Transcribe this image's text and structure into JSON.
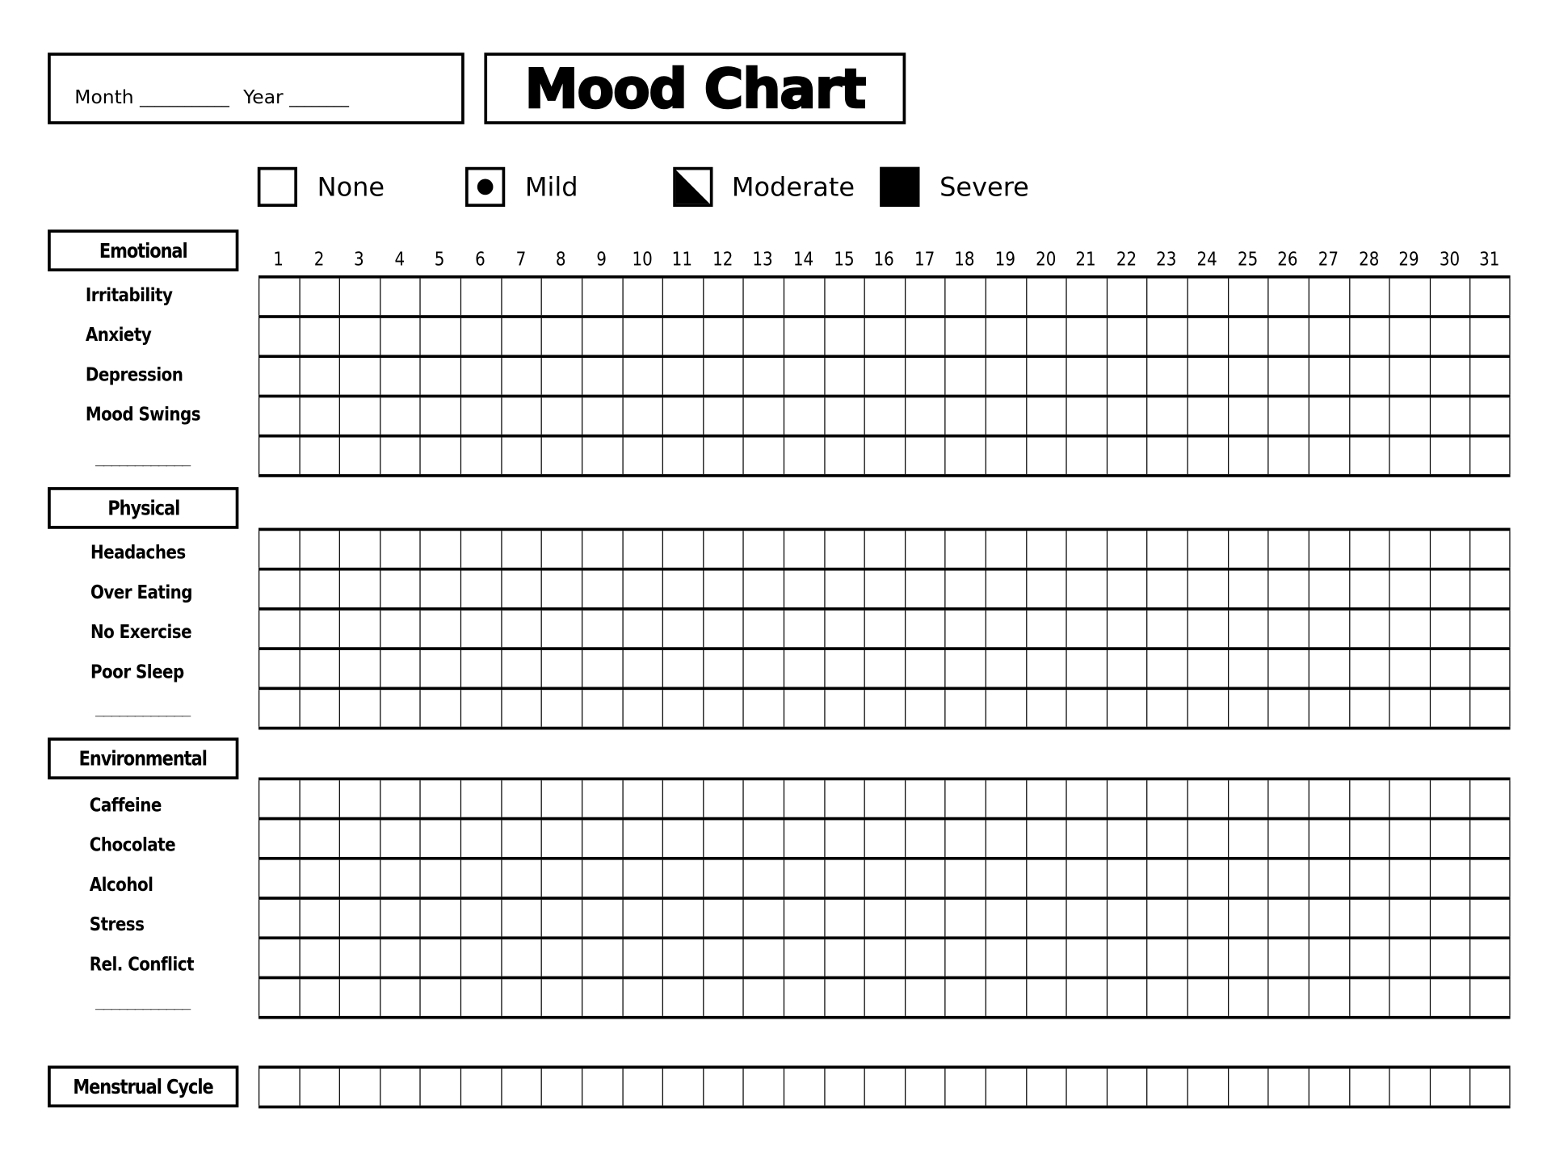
{
  "header": {
    "month_label": "Month",
    "month_blank": "____________",
    "year_label": "Year",
    "year_blank": "________",
    "title": "Mood Chart"
  },
  "legend": [
    {
      "label": "None",
      "icon": "empty-square-icon"
    },
    {
      "label": "Mild",
      "icon": "dot-square-icon"
    },
    {
      "label": "Moderate",
      "icon": "half-diagonal-square-icon"
    },
    {
      "label": "Severe",
      "icon": "filled-square-icon"
    }
  ],
  "days": [
    "1",
    "2",
    "3",
    "4",
    "5",
    "6",
    "7",
    "8",
    "9",
    "10",
    "11",
    "12",
    "13",
    "14",
    "15",
    "16",
    "17",
    "18",
    "19",
    "20",
    "21",
    "22",
    "23",
    "24",
    "25",
    "26",
    "27",
    "28",
    "29",
    "30",
    "31"
  ],
  "sections": {
    "emotional": {
      "title": "Emotional",
      "rows": [
        "Irritability",
        "Anxiety",
        "Depression",
        "Mood Swings"
      ],
      "blank": "____________"
    },
    "physical": {
      "title": "Physical",
      "rows": [
        "Headaches",
        "Over Eating",
        "No Exercise",
        "Poor Sleep"
      ],
      "blank": "____________"
    },
    "environmental": {
      "title": "Environmental",
      "rows": [
        "Caffeine",
        "Chocolate",
        "Alcohol",
        "Stress",
        "Rel. Conflict"
      ],
      "blank": "____________"
    },
    "menstrual": {
      "title": "Menstrual Cycle"
    }
  }
}
